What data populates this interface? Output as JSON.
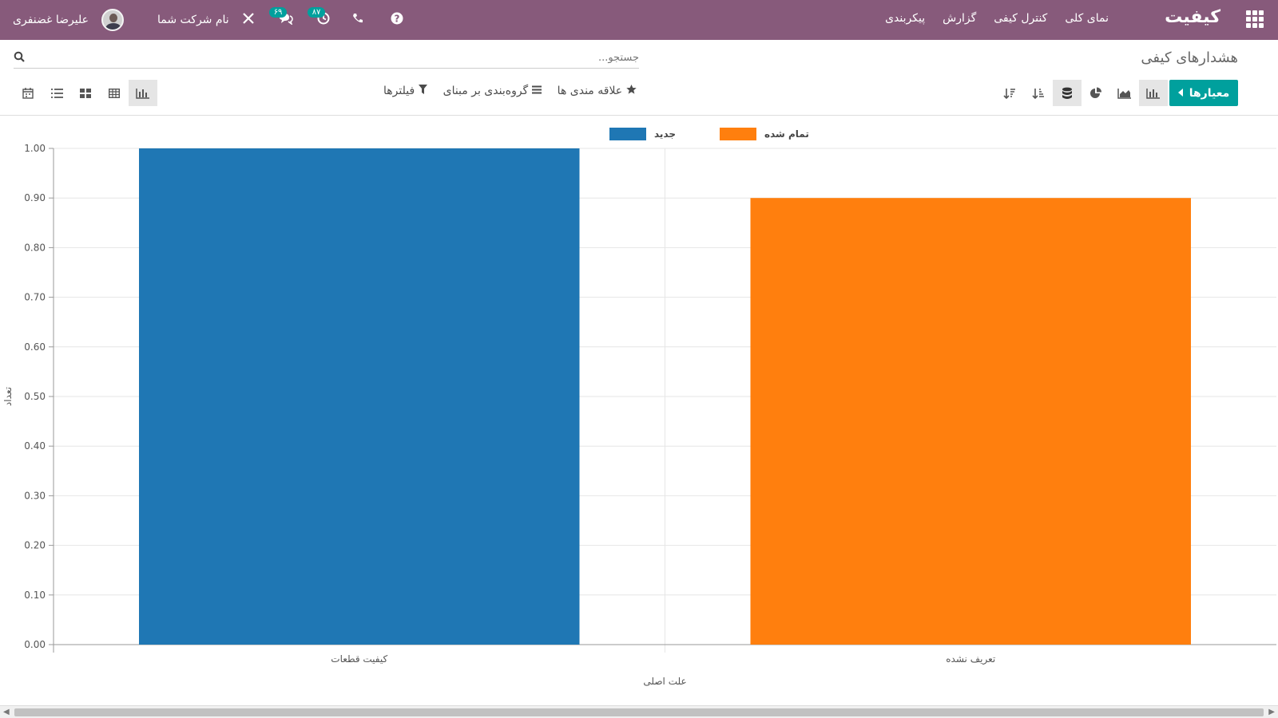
{
  "navbar": {
    "brand": "کیفیت",
    "menu": [
      "نمای کلی",
      "کنترل کیفی",
      "گزارش",
      "پیکربندی"
    ],
    "user_name": "علیرضا غضنفری",
    "company": "نام شرکت شما",
    "messages_badge": "۶۹",
    "activities_badge": "۸۷",
    "accent_color": "#875a7b"
  },
  "page": {
    "title": "هشدارهای کیفی",
    "search_placeholder": "جستجو...",
    "measures_label": "معیارها",
    "filters_label": "فیلترها",
    "groupby_label": "گروه‌بندی بر مبنای",
    "favorites_label": "علاقه مندی ها"
  },
  "icons": {
    "apps": "apps-grid-icon",
    "help": "question-circle-icon",
    "phone": "phone-icon",
    "activity": "clock-icon",
    "messages": "chat-icon",
    "debug": "tools-icon"
  },
  "chart_data": {
    "type": "bar",
    "categories": [
      "کیفیت قطعات",
      "تعریف نشده"
    ],
    "series": [
      {
        "name": "جدید",
        "values": [
          1.0,
          0
        ],
        "color": "#1f77b4"
      },
      {
        "name": "تمام شده",
        "values": [
          0,
          0.9
        ],
        "color": "#ff7f0e"
      }
    ],
    "xlabel": "علت اصلی",
    "ylabel": "تعداد",
    "ylim": [
      0,
      1.0
    ],
    "yticks": [
      "0.00",
      "0.10",
      "0.20",
      "0.30",
      "0.40",
      "0.50",
      "0.60",
      "0.70",
      "0.80",
      "0.90",
      "1.00"
    ],
    "grid": true,
    "legend": "top-center"
  }
}
